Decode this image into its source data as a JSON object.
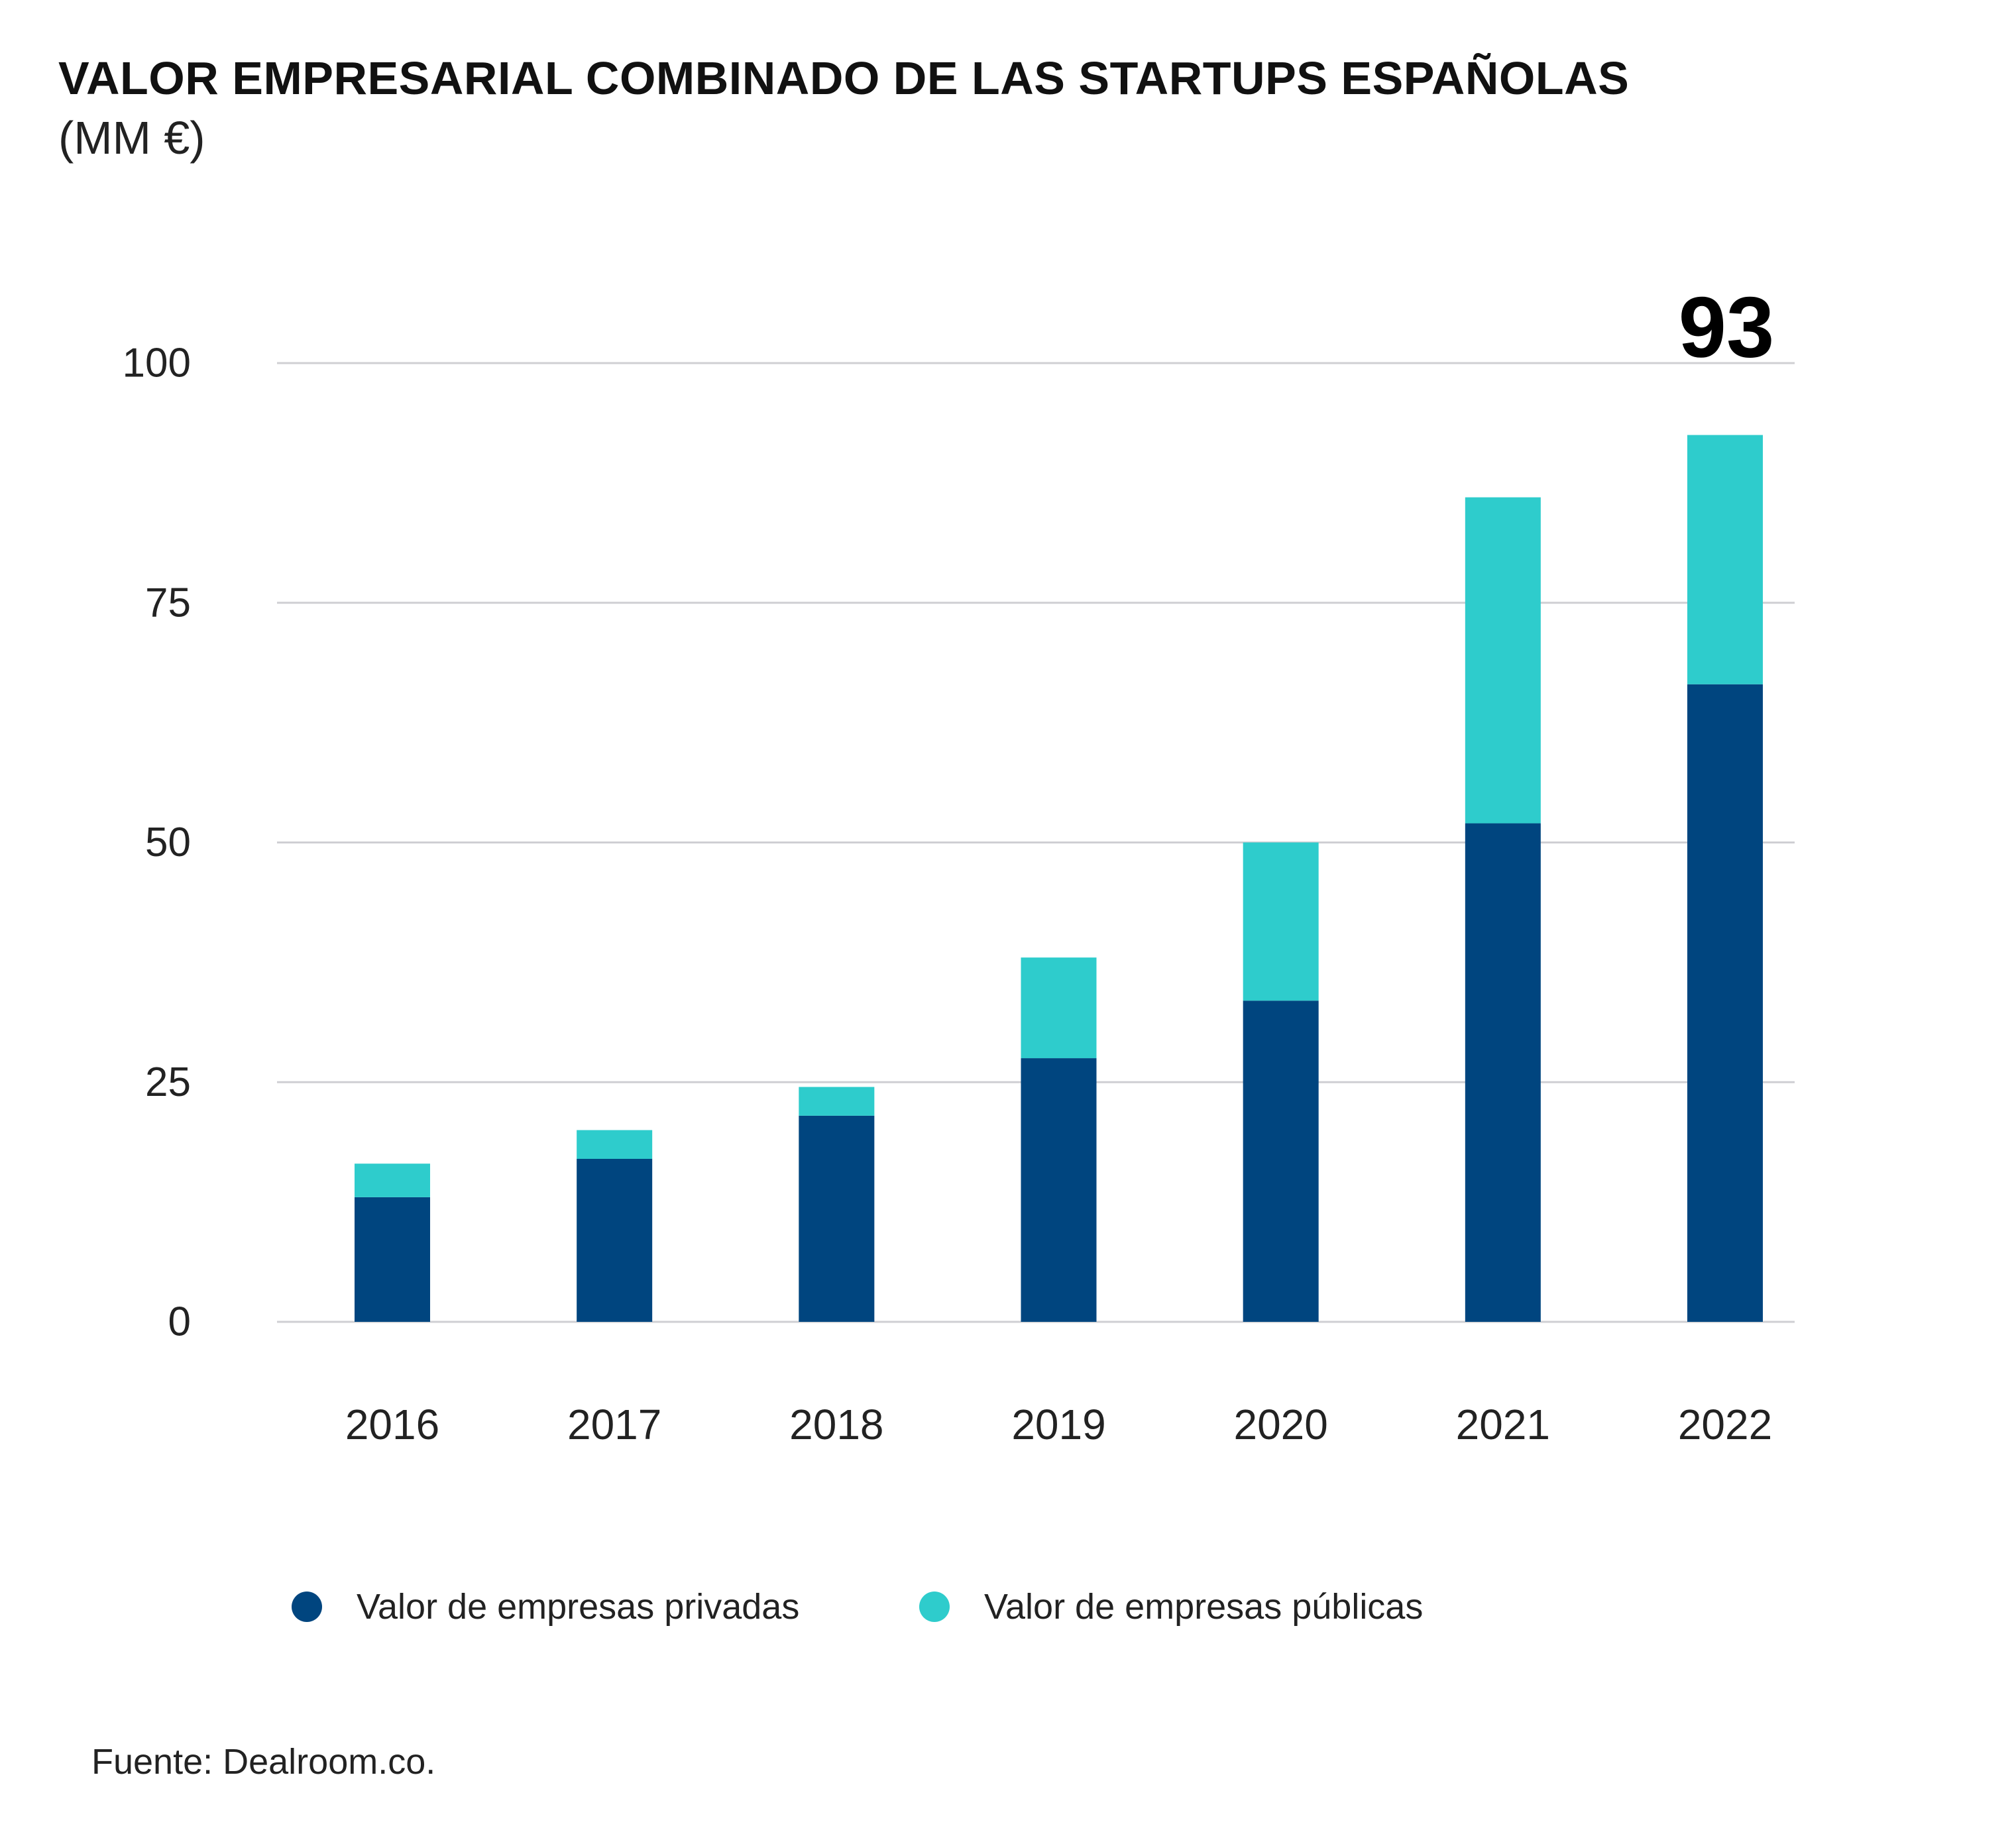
{
  "header": {
    "title": "VALOR EMPRESARIAL COMBINADO DE LAS STARTUPS ESPAÑOLAS",
    "subtitle": "(MM €)"
  },
  "chart_data": {
    "type": "bar",
    "stacked": true,
    "categories": [
      "2016",
      "2017",
      "2018",
      "2019",
      "2020",
      "2021",
      "2022"
    ],
    "series": [
      {
        "name": "Valor de empresas privadas",
        "color": "#00457f",
        "values": [
          13,
          17,
          21.5,
          27.5,
          33.5,
          52,
          66.5
        ]
      },
      {
        "name": "Valor de empresas públicas",
        "color": "#2ecccc",
        "values": [
          3.5,
          3,
          3,
          10.5,
          16.5,
          34,
          26
        ]
      }
    ],
    "yticks": [
      0,
      25,
      50,
      75,
      100
    ],
    "ylim": [
      0,
      100
    ],
    "grid": true,
    "annotations": [
      {
        "category": "2022",
        "text": "93"
      }
    ],
    "legend_position": "bottom"
  },
  "footer": {
    "source": "Fuente: Dealroom.co."
  }
}
